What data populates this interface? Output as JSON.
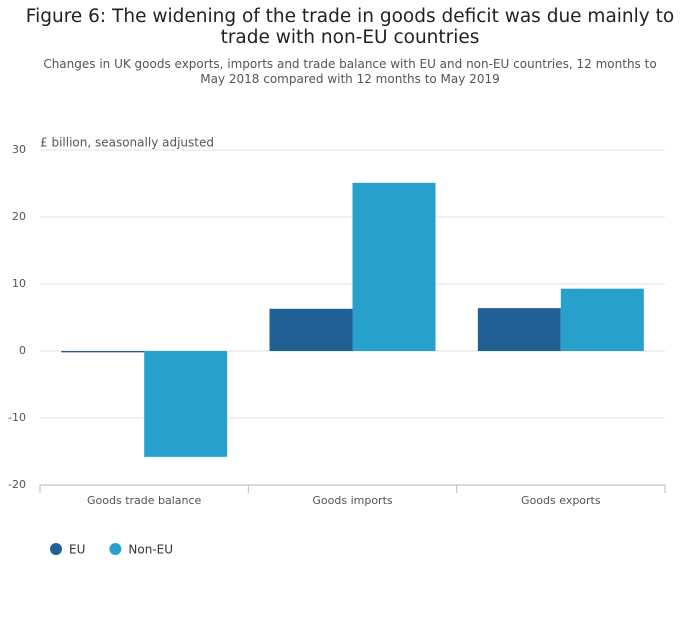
{
  "chart_data": {
    "type": "bar",
    "title": "Figure 6: The widening of the trade in goods deficit was due mainly to trade with non-EU countries",
    "subtitle": "Changes in UK goods exports, imports and trade balance with EU and non-EU countries, 12 months to May 2018 compared with 12 months to May 2019",
    "y_label": "£ billion, seasonally adjusted",
    "categories": [
      "Goods trade balance",
      "Goods imports",
      "Goods exports"
    ],
    "series": [
      {
        "name": "EU",
        "color": "#206095",
        "values": [
          -0.2,
          6.3,
          6.4
        ]
      },
      {
        "name": "Non-EU",
        "color": "#27a0cc",
        "values": [
          -15.8,
          25.1,
          9.3
        ]
      }
    ],
    "ylim": [
      -20,
      30
    ],
    "yticks": [
      -20,
      -10,
      0,
      10,
      20,
      30
    ],
    "grid": true
  }
}
